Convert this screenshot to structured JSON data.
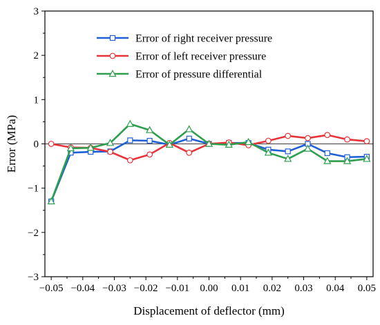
{
  "chart_data": {
    "type": "line",
    "xlabel": "Displacement of deflector (mm)",
    "ylabel": "Error (MPa)",
    "xlim": [
      -0.052,
      0.052
    ],
    "ylim": [
      -3,
      3
    ],
    "x_ticks": [
      -0.05,
      -0.04,
      -0.03,
      -0.02,
      -0.01,
      0.0,
      0.01,
      0.02,
      0.03,
      0.04,
      0.05
    ],
    "x_tick_labels": [
      "−0.05",
      "−0.04",
      "−0.03",
      "−0.02",
      "−0.01",
      "0.00",
      "0.01",
      "0.02",
      "0.03",
      "0.04",
      "0.05"
    ],
    "y_ticks": [
      -3,
      -2,
      -1,
      0,
      1,
      2,
      3
    ],
    "y_tick_labels": [
      "−3",
      "−2",
      "−1",
      "0",
      "1",
      "2",
      "3"
    ],
    "reference_line": 0,
    "legend_position": "top-center",
    "x": [
      -0.05,
      -0.0438,
      -0.0375,
      -0.0313,
      -0.025,
      -0.0188,
      -0.0125,
      -0.0063,
      0.0,
      0.0063,
      0.0125,
      0.0188,
      0.025,
      0.0313,
      0.0375,
      0.0438,
      0.05
    ],
    "series": [
      {
        "name": "Error of right receiver pressure",
        "color": "#1f5fd6",
        "marker": "square",
        "values": [
          -1.3,
          -0.2,
          -0.18,
          -0.17,
          0.08,
          0.07,
          -0.02,
          0.12,
          0.0,
          0.02,
          0.02,
          -0.13,
          -0.17,
          0.0,
          -0.21,
          -0.3,
          -0.29
        ]
      },
      {
        "name": "Error of left receiver pressure",
        "color": "#e8333a",
        "marker": "circle",
        "values": [
          0.0,
          -0.08,
          -0.09,
          -0.18,
          -0.37,
          -0.24,
          0.02,
          -0.2,
          0.0,
          0.03,
          -0.03,
          0.07,
          0.18,
          0.13,
          0.2,
          0.1,
          0.06
        ]
      },
      {
        "name": "Error of pressure differential",
        "color": "#2e9e4f",
        "marker": "triangle",
        "values": [
          -1.3,
          -0.1,
          -0.09,
          0.02,
          0.45,
          0.31,
          -0.02,
          0.33,
          0.0,
          -0.02,
          0.04,
          -0.2,
          -0.34,
          -0.11,
          -0.39,
          -0.39,
          -0.34
        ]
      }
    ]
  }
}
